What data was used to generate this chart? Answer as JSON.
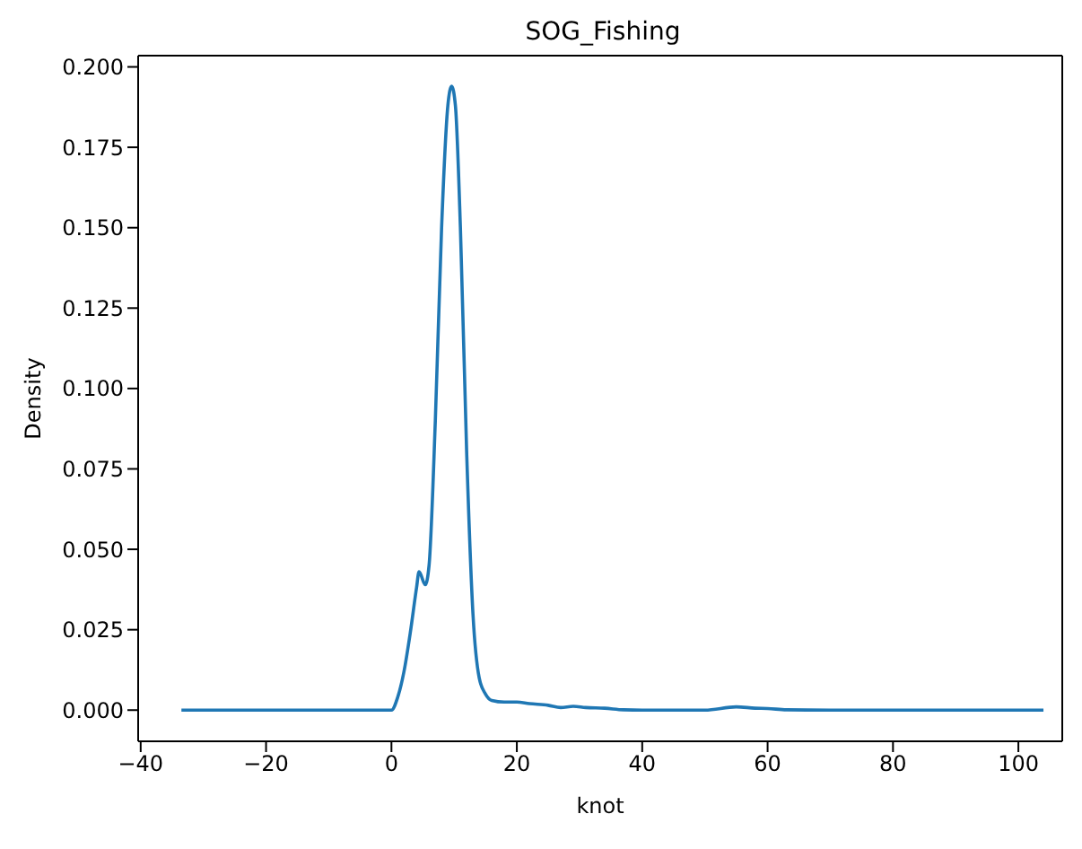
{
  "chart_data": {
    "type": "line",
    "title": "SOG_Fishing",
    "xlabel": "knot",
    "ylabel": "Density",
    "x": [
      -33.5,
      -10,
      0,
      1,
      2,
      3,
      4,
      4.4,
      5.4,
      6,
      7,
      8,
      9,
      9.6,
      10.2,
      11,
      12,
      13,
      14,
      15,
      16,
      18,
      20,
      22,
      25,
      27,
      29,
      31,
      34,
      37,
      40,
      50,
      55,
      58,
      60,
      63,
      70,
      104
    ],
    "series": [
      {
        "color": "#1f77b4",
        "values": [
          0,
          0,
          0,
          0.004,
          0.012,
          0.024,
          0.038,
          0.043,
          0.039,
          0.045,
          0.09,
          0.15,
          0.188,
          0.194,
          0.188,
          0.15,
          0.08,
          0.03,
          0.01,
          0.005,
          0.003,
          0.0025,
          0.0025,
          0.002,
          0.0015,
          0.0008,
          0.0012,
          0.0008,
          0.0006,
          0.0001,
          0,
          0,
          0.001,
          0.0006,
          0.0005,
          0.0001,
          0,
          0
        ]
      }
    ],
    "xlim": [
      -40.4,
      107
    ],
    "ylim": [
      -0.0097,
      0.2035
    ],
    "xticks": [
      {
        "value": -40,
        "label": "−40"
      },
      {
        "value": -20,
        "label": "−20"
      },
      0,
      20,
      40,
      60,
      80,
      100
    ],
    "yticks": [
      {
        "value": 0,
        "label": "0.000"
      },
      {
        "value": 0.025,
        "label": "0.025"
      },
      {
        "value": 0.05,
        "label": "0.050"
      },
      {
        "value": 0.075,
        "label": "0.075"
      },
      {
        "value": 0.1,
        "label": "0.100"
      },
      {
        "value": 0.125,
        "label": "0.125"
      },
      {
        "value": 0.15,
        "label": "0.150"
      },
      {
        "value": 0.175,
        "label": "0.175"
      },
      {
        "value": 0.2,
        "label": "0.200"
      }
    ],
    "grid": false,
    "legend": false,
    "marker": "none",
    "line_style": "solid"
  }
}
